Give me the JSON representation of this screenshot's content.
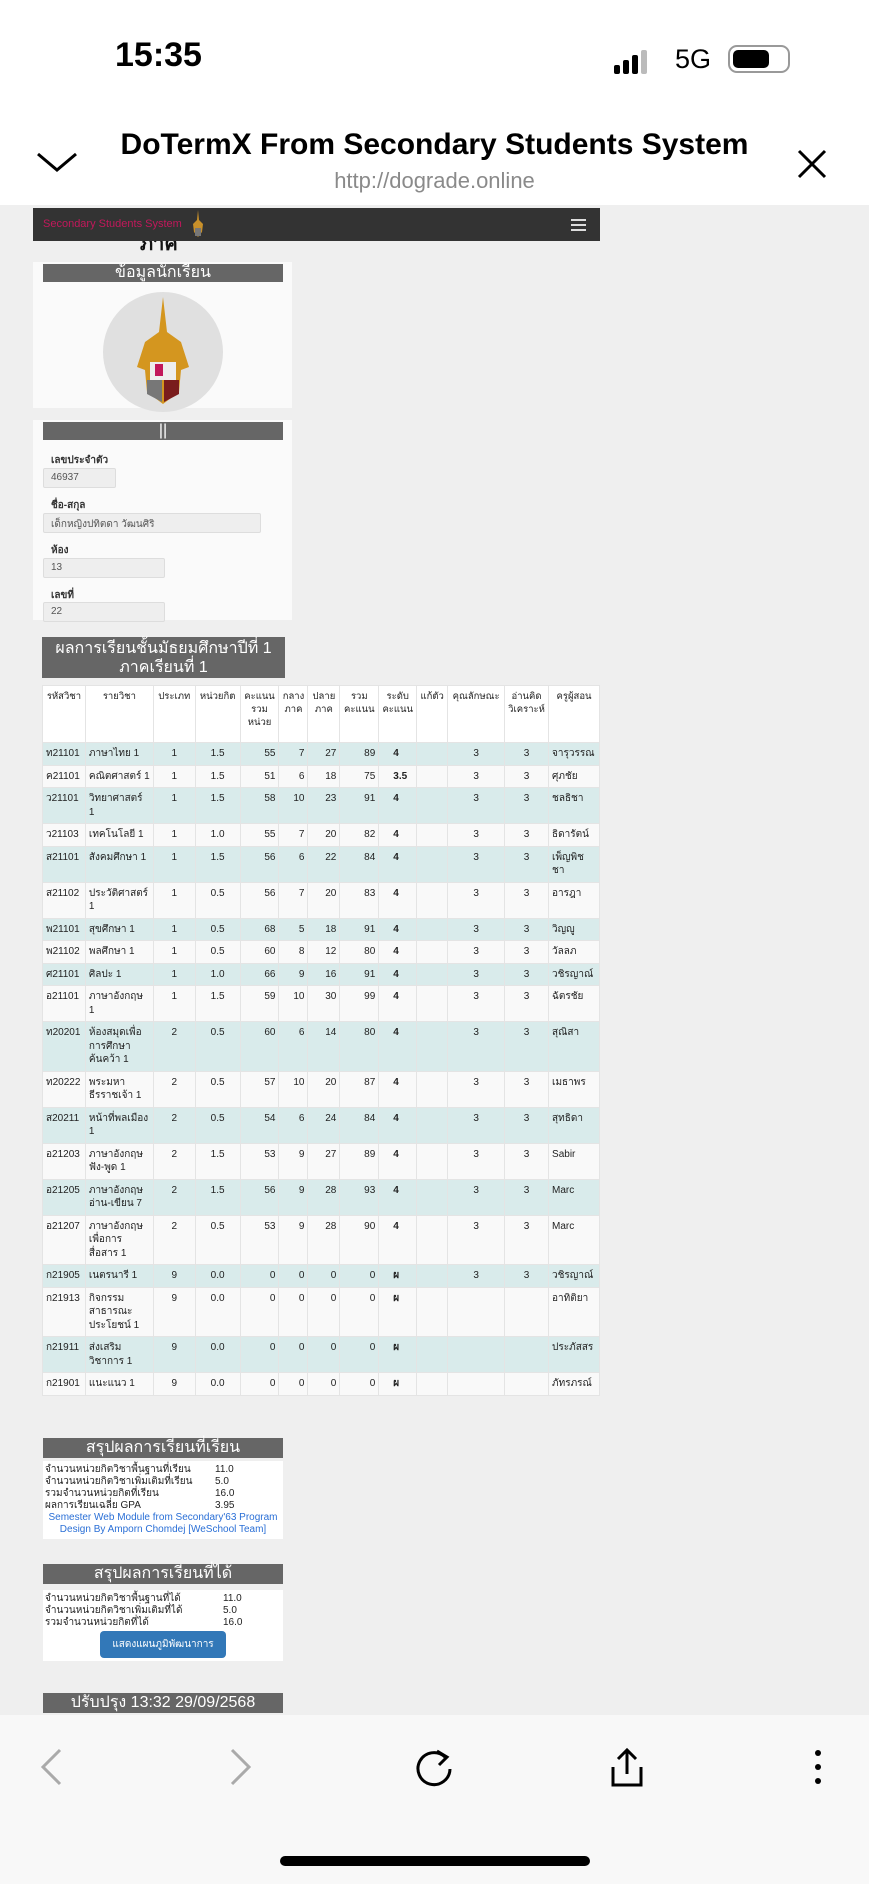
{
  "status": {
    "time": "15:35",
    "network": "5G",
    "signal_bars": 3,
    "battery_level": 0.7
  },
  "browser": {
    "title": "DoTermX From Secondary Students System",
    "url": "http://dograde.online"
  },
  "site": {
    "brand": "Secondary Students System",
    "heading_fragment": "ภาค"
  },
  "student_panel": {
    "title": "ข้อมูลนักเรียน"
  },
  "info_panel": {
    "title": "||",
    "fields": [
      {
        "label": "เลขประจำตัว",
        "value": "46937"
      },
      {
        "label": "ชื่อ-สกุล",
        "value": "เด็กหญิงปทิตดา  วัฒนศิริ"
      },
      {
        "label": "ห้อง",
        "value": "13"
      },
      {
        "label": "เลขที่",
        "value": "22"
      }
    ]
  },
  "grades": {
    "title_line1": "ผลการเรียนชั้นมัธยมศึกษาปีที่ 1",
    "title_line2": "ภาคเรียนที่ 1",
    "headers": [
      "รหัสวิชา",
      "รายวิชา",
      "ประเภท",
      "หน่วยกิต",
      "คะแนน รวม หน่วย",
      "กลาง ภาค",
      "ปลาย ภาค",
      "รวม คะแนน",
      "ระดับ คะแนน",
      "แก้ตัว",
      "คุณลักษณะ",
      "อ่านคิด วิเคราะห์",
      "ครูผู้สอน"
    ],
    "rows": [
      [
        "ท21101",
        "ภาษาไทย 1",
        "1",
        "1.5",
        "55",
        "7",
        "27",
        "89",
        "4",
        "",
        "3",
        "3",
        "จารุวรรณ"
      ],
      [
        "ค21101",
        "คณิตศาสตร์ 1",
        "1",
        "1.5",
        "51",
        "6",
        "18",
        "75",
        "3.5",
        "",
        "3",
        "3",
        "ศุภชัย"
      ],
      [
        "ว21101",
        "วิทยาศาสตร์ 1",
        "1",
        "1.5",
        "58",
        "10",
        "23",
        "91",
        "4",
        "",
        "3",
        "3",
        "ชลธิชา"
      ],
      [
        "ว21103",
        "เทคโนโลยี 1",
        "1",
        "1.0",
        "55",
        "7",
        "20",
        "82",
        "4",
        "",
        "3",
        "3",
        "ธิดารัตน์"
      ],
      [
        "ส21101",
        "สังคมศึกษา 1",
        "1",
        "1.5",
        "56",
        "6",
        "22",
        "84",
        "4",
        "",
        "3",
        "3",
        "เพ็ญพิชชา"
      ],
      [
        "ส21102",
        "ประวัติศาสตร์ 1",
        "1",
        "0.5",
        "56",
        "7",
        "20",
        "83",
        "4",
        "",
        "3",
        "3",
        "อารฎา"
      ],
      [
        "พ21101",
        "สุขศึกษา 1",
        "1",
        "0.5",
        "68",
        "5",
        "18",
        "91",
        "4",
        "",
        "3",
        "3",
        "วิญญู"
      ],
      [
        "พ21102",
        "พลศึกษา 1",
        "1",
        "0.5",
        "60",
        "8",
        "12",
        "80",
        "4",
        "",
        "3",
        "3",
        "วัลลภ"
      ],
      [
        "ศ21101",
        "ศิลปะ 1",
        "1",
        "1.0",
        "66",
        "9",
        "16",
        "91",
        "4",
        "",
        "3",
        "3",
        "วชิรญาณ์"
      ],
      [
        "อ21101",
        "ภาษาอังกฤษ 1",
        "1",
        "1.5",
        "59",
        "10",
        "30",
        "99",
        "4",
        "",
        "3",
        "3",
        "ฉัตรชัย"
      ],
      [
        "ท20201",
        "ห้องสมุดเพื่อการศึกษาค้นคว้า 1",
        "2",
        "0.5",
        "60",
        "6",
        "14",
        "80",
        "4",
        "",
        "3",
        "3",
        "สุณิสา"
      ],
      [
        "ท20222",
        "พระมหาธีรราชเจ้า 1",
        "2",
        "0.5",
        "57",
        "10",
        "20",
        "87",
        "4",
        "",
        "3",
        "3",
        "เมธาพร"
      ],
      [
        "ส20211",
        "หน้าที่พลเมือง 1",
        "2",
        "0.5",
        "54",
        "6",
        "24",
        "84",
        "4",
        "",
        "3",
        "3",
        "สุทธิดา"
      ],
      [
        "อ21203",
        "ภาษาอังกฤษฟัง-พูด 1",
        "2",
        "1.5",
        "53",
        "9",
        "27",
        "89",
        "4",
        "",
        "3",
        "3",
        "Sabir"
      ],
      [
        "อ21205",
        "ภาษาอังกฤษอ่าน-เขียน 7",
        "2",
        "1.5",
        "56",
        "9",
        "28",
        "93",
        "4",
        "",
        "3",
        "3",
        "Marc"
      ],
      [
        "อ21207",
        "ภาษาอังกฤษเพื่อการสื่อสาร 1",
        "2",
        "0.5",
        "53",
        "9",
        "28",
        "90",
        "4",
        "",
        "3",
        "3",
        "Marc"
      ],
      [
        "ก21905",
        "เนตรนารี 1",
        "9",
        "0.0",
        "0",
        "0",
        "0",
        "0",
        "ผ",
        "",
        "3",
        "3",
        "วชิรญาณ์"
      ],
      [
        "ก21913",
        "กิจกรรมสาธารณะประโยชน์ 1",
        "9",
        "0.0",
        "0",
        "0",
        "0",
        "0",
        "ผ",
        "",
        "",
        "",
        "อาทิติยา"
      ],
      [
        "ก21911",
        "ส่งเสริมวิชาการ 1",
        "9",
        "0.0",
        "0",
        "0",
        "0",
        "0",
        "ผ",
        "",
        "",
        "",
        "ประภัสสร"
      ],
      [
        "ก21901",
        "แนะแนว 1",
        "9",
        "0.0",
        "0",
        "0",
        "0",
        "0",
        "ผ",
        "",
        "",
        "",
        "ภัทรภรณ์"
      ]
    ]
  },
  "summary_studied": {
    "title": "สรุปผลการเรียนที่เรียน",
    "rows": [
      {
        "label": "จำนวนหน่วยกิตวิชาพื้นฐานที่เรียน",
        "value": "11.0"
      },
      {
        "label": "จำนวนหน่วยกิตวิชาเพิ่มเติมที่เรียน",
        "value": "5.0"
      },
      {
        "label": "รวมจำนวนหน่วยกิตที่เรียน",
        "value": "16.0"
      },
      {
        "label": "ผลการเรียนเฉลี่ย GPA",
        "value": "3.95"
      }
    ],
    "credit1": "Semester Web Module from Secondary'63 Program",
    "credit2": "Design By Amporn Chomdej [WeSchool Team]"
  },
  "summary_earned": {
    "title": "สรุปผลการเรียนที่ได้",
    "rows": [
      {
        "label": "จำนวนหน่วยกิตวิชาพื้นฐานที่ได้",
        "value": "11.0"
      },
      {
        "label": "จำนวนหน่วยกิตวิชาเพิ่มเติมที่ได้",
        "value": "5.0"
      },
      {
        "label": "รวมจำนวนหน่วยกิตที่ได้",
        "value": "16.0"
      }
    ],
    "button": "แสดงแผนภูมิพัฒนาการ"
  },
  "updated": "ปรับปรุง 13:32 29/09/2568",
  "colors": {
    "header_bar": "#666666",
    "stripe": "#d9ebeb",
    "button": "#3278b8",
    "brand": "#c2185b",
    "navbar": "#333333"
  }
}
